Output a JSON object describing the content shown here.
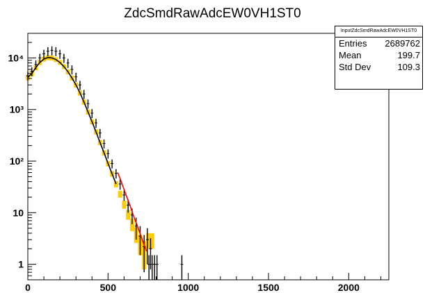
{
  "chart_data": {
    "type": "histogram",
    "title": "ZdcSmdRawAdcEW0VH1ST0",
    "xlabel": "",
    "ylabel": "",
    "xlim": [
      0,
      2250
    ],
    "ylim": [
      0.5,
      30000
    ],
    "yscale": "log",
    "grid": false,
    "x_ticks": [
      0,
      500,
      1000,
      1500,
      2000
    ],
    "x_tick_labels": [
      "0",
      "500",
      "1000",
      "1500",
      "2000"
    ],
    "y_ticks": [
      1,
      10,
      100,
      1000,
      10000
    ],
    "y_tick_labels": [
      "1",
      "10",
      "10²",
      "10³",
      "10⁴"
    ],
    "stats_box": {
      "name": "InputZdcSmdRawAdcEW0VH1ST0",
      "rows": [
        {
          "label": "Entries",
          "value": "2689762"
        },
        {
          "label": "Mean",
          "value": "199.7"
        },
        {
          "label": "Std Dev",
          "value": "109.3"
        }
      ]
    },
    "series": [
      {
        "style": "error-bars",
        "color": "#000000",
        "x": [
          0,
          25,
          50,
          75,
          100,
          125,
          150,
          175,
          200,
          225,
          250,
          275,
          300,
          325,
          350,
          375,
          400,
          425,
          450,
          475,
          500,
          525,
          550,
          575,
          600,
          625,
          650,
          675,
          700,
          725,
          745,
          755,
          765,
          775,
          790,
          805,
          960
        ],
        "y": [
          4500,
          5500,
          7500,
          10000,
          12000,
          13500,
          14000,
          13500,
          12000,
          10000,
          8000,
          6000,
          4300,
          3000,
          2000,
          1300,
          850,
          550,
          350,
          220,
          140,
          90,
          58,
          36,
          22,
          14,
          9,
          5.5,
          3.5,
          2.2,
          3,
          1,
          2,
          1,
          1,
          1,
          1
        ],
        "err": [
          900,
          1100,
          1500,
          2000,
          2400,
          2700,
          2800,
          2700,
          2400,
          2000,
          1600,
          1200,
          860,
          600,
          400,
          260,
          170,
          110,
          70,
          44,
          28,
          18,
          12,
          8,
          5,
          4,
          3,
          2.5,
          2,
          1.5,
          2,
          0.5,
          1.2,
          0.5,
          0.5,
          0.5,
          0.5
        ]
      },
      {
        "style": "band",
        "color": "#ffcc00",
        "x": [
          0,
          25,
          50,
          75,
          100,
          125,
          150,
          175,
          200,
          225,
          250,
          275,
          300,
          325,
          350,
          375,
          400,
          425,
          450,
          475,
          500,
          525,
          550,
          575,
          600,
          625,
          650,
          675,
          700,
          725,
          750,
          775
        ],
        "y": [
          4200,
          5000,
          6500,
          8200,
          9500,
          10200,
          10000,
          9300,
          8200,
          6800,
          5400,
          4100,
          3000,
          2100,
          1400,
          900,
          580,
          370,
          230,
          145,
          90,
          57,
          36,
          23,
          14.5,
          9.3,
          6,
          3.9,
          2.6,
          1.8,
          3,
          3
        ],
        "width": [
          500,
          600,
          750,
          900,
          1000,
          1100,
          1100,
          1000,
          900,
          750,
          600,
          460,
          340,
          240,
          160,
          100,
          66,
          42,
          26,
          17,
          11,
          7,
          5,
          3.5,
          2.6,
          2,
          1.6,
          1.3,
          1.1,
          1,
          1,
          1
        ]
      },
      {
        "style": "line",
        "color": "#ff0000",
        "x": [
          560,
          580,
          600,
          620,
          640,
          660,
          680,
          700,
          720,
          740
        ],
        "y": [
          60,
          42,
          28,
          19,
          13,
          8.5,
          5.8,
          3.9,
          2.6,
          1.8
        ]
      },
      {
        "style": "line",
        "color": "#000000",
        "x": [
          0,
          25,
          50,
          75,
          100,
          125,
          150,
          175,
          200,
          225,
          250,
          275,
          300,
          325,
          350,
          375,
          400,
          425,
          450,
          475,
          500,
          525,
          550
        ],
        "y": [
          4200,
          5000,
          6500,
          8200,
          9500,
          10200,
          10000,
          9300,
          8200,
          6800,
          5400,
          4100,
          3000,
          2100,
          1400,
          900,
          580,
          370,
          230,
          145,
          90,
          57,
          36
        ]
      }
    ]
  }
}
